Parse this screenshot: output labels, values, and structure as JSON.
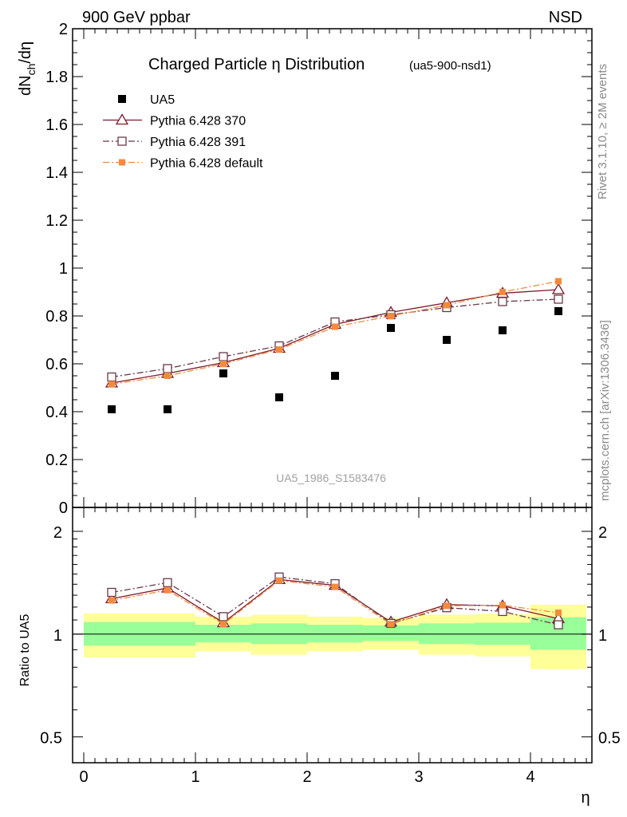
{
  "header": {
    "left": "900 GeV ppbar",
    "right": "NSD"
  },
  "side_labels": {
    "rivet": "Rivet 3.1.10, ≥ 2M events",
    "mcplots": "mcplots.cern.ch [arXiv:1306.3436]"
  },
  "chart_data": [
    {
      "type": "scatter",
      "title": "Charged Particle η Distribution",
      "subtitle": "(ua5-900-nsd1)",
      "ylabel": "dN_ch/dη",
      "watermark": "UA5_1986_S1583476",
      "xlim": [
        -0.1,
        4.55
      ],
      "ylim": [
        0,
        2
      ],
      "y_ticks": [
        "0",
        "0.2",
        "0.4",
        "0.6",
        "0.8",
        "1",
        "1.2",
        "1.4",
        "1.6",
        "1.8",
        "2"
      ],
      "legend_position": "top-left",
      "x": [
        0.25,
        0.75,
        1.25,
        1.75,
        2.25,
        2.75,
        3.25,
        3.75,
        4.25
      ],
      "series": [
        {
          "name": "UA5",
          "style": "data",
          "color": "#000000",
          "values": [
            0.41,
            0.41,
            0.56,
            0.46,
            0.55,
            0.75,
            0.7,
            0.74,
            0.82
          ]
        },
        {
          "name": "Pythia 6.428 370",
          "style": "solid-triangle",
          "color": "#7f1a2a",
          "values": [
            0.52,
            0.56,
            0.605,
            0.665,
            0.765,
            0.815,
            0.855,
            0.895,
            0.91
          ]
        },
        {
          "name": "Pythia 6.428 391",
          "style": "dashdot-square",
          "color": "#6b3848",
          "values": [
            0.545,
            0.58,
            0.63,
            0.675,
            0.775,
            0.805,
            0.835,
            0.86,
            0.87
          ]
        },
        {
          "name": "Pythia 6.428 default",
          "style": "dashdot-filledsquare",
          "color": "#f58a3c",
          "values": [
            0.515,
            0.55,
            0.6,
            0.66,
            0.755,
            0.8,
            0.845,
            0.9,
            0.945
          ]
        }
      ]
    },
    {
      "type": "line",
      "ylabel": "Ratio to UA5",
      "xlabel": "η",
      "xlim": [
        -0.1,
        4.55
      ],
      "ylim": [
        0.42,
        2.35
      ],
      "log_y": true,
      "x_ticks": [
        "0",
        "1",
        "2",
        "3",
        "4"
      ],
      "y_ticks": [
        "0.5",
        "1",
        "2"
      ],
      "x": [
        0.25,
        0.75,
        1.25,
        1.75,
        2.25,
        2.75,
        3.25,
        3.75,
        4.25
      ],
      "bin_edges": [
        0,
        0.5,
        1,
        1.5,
        2,
        2.5,
        3,
        3.5,
        4,
        4.5
      ],
      "band_inner": [
        [
          0.925,
          1.085
        ],
        [
          0.925,
          1.085
        ],
        [
          0.945,
          1.065
        ],
        [
          0.935,
          1.075
        ],
        [
          0.945,
          1.065
        ],
        [
          0.955,
          1.06
        ],
        [
          0.935,
          1.075
        ],
        [
          0.93,
          1.08
        ],
        [
          0.9,
          1.12
        ]
      ],
      "band_outer": [
        [
          0.855,
          1.15
        ],
        [
          0.855,
          1.15
        ],
        [
          0.89,
          1.125
        ],
        [
          0.87,
          1.14
        ],
        [
          0.89,
          1.125
        ],
        [
          0.9,
          1.115
        ],
        [
          0.87,
          1.14
        ],
        [
          0.86,
          1.145
        ],
        [
          0.79,
          1.22
        ]
      ],
      "band_colors": {
        "inner": "#99ff99",
        "outer": "#ffff99"
      },
      "series": [
        {
          "name": "Pythia 6.428 370",
          "color": "#7f1a2a",
          "values": [
            1.27,
            1.365,
            1.08,
            1.445,
            1.39,
            1.085,
            1.22,
            1.21,
            1.11
          ]
        },
        {
          "name": "Pythia 6.428 391",
          "color": "#6b3848",
          "values": [
            1.325,
            1.415,
            1.125,
            1.47,
            1.405,
            1.075,
            1.195,
            1.165,
            1.065
          ]
        },
        {
          "name": "Pythia 6.428 default",
          "color": "#f58a3c",
          "values": [
            1.255,
            1.345,
            1.07,
            1.435,
            1.375,
            1.07,
            1.21,
            1.215,
            1.155
          ]
        }
      ]
    }
  ]
}
